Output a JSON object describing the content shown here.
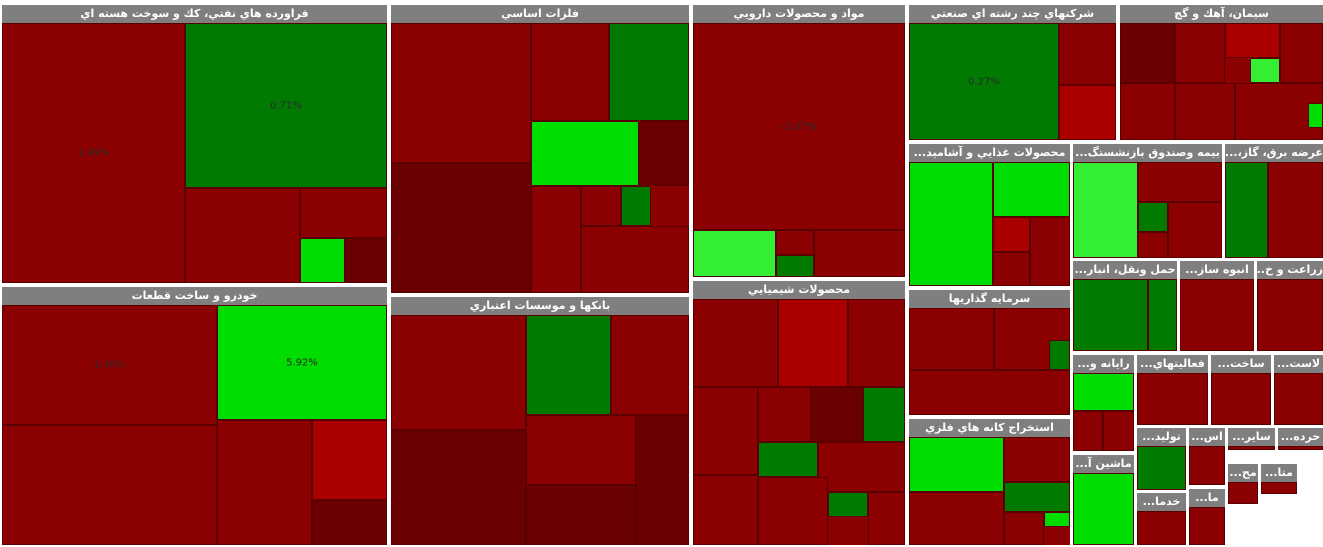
{
  "sectors": [
    {
      "title": "فراورده هاي نفتي، كك و سوخت هسته اي",
      "tiles": [
        {
          "label": "1.99%"
        },
        {
          "label": "0.71%"
        }
      ]
    },
    {
      "title": "خودرو و ساخت قطعات",
      "tiles": [
        {
          "label": "1.40%"
        },
        {
          "label": "5.92%"
        }
      ]
    },
    {
      "title": "فلزات اساسي",
      "tiles": []
    },
    {
      "title": "بانكها و موسسات اعتباري",
      "tiles": []
    },
    {
      "title": "مواد و محصولات دارويي",
      "tiles": [
        {
          "label": "-1.07%"
        }
      ]
    },
    {
      "title": "محصولات شيميايي",
      "tiles": []
    },
    {
      "title": "شركتهاي چند رشته اي صنعتي",
      "tiles": [
        {
          "label": "0.27%"
        }
      ]
    },
    {
      "title": "سيمان، آهك و گچ",
      "tiles": []
    },
    {
      "title": "محصولات غذايي و آشاميد...",
      "tiles": []
    },
    {
      "title": "بيمه وصندوق بازنشستگ...",
      "tiles": []
    },
    {
      "title": "عرضه برق، گاز،...",
      "tiles": []
    },
    {
      "title": "سرمايه گذاريها",
      "tiles": []
    },
    {
      "title": "استخراج كانه هاي فلزي",
      "tiles": []
    },
    {
      "title": "حمل ونقل، انبار...",
      "tiles": []
    },
    {
      "title": "انبوه ساز...",
      "tiles": []
    },
    {
      "title": "زراعت و خ...",
      "tiles": []
    },
    {
      "title": "رايانه و...",
      "tiles": []
    },
    {
      "title": "فعاليتهاي...",
      "tiles": []
    },
    {
      "title": "ساخت...",
      "tiles": []
    },
    {
      "title": "لاست...",
      "tiles": []
    },
    {
      "title": "تولید...",
      "tiles": []
    },
    {
      "title": "اس...",
      "tiles": []
    },
    {
      "title": "ساير...",
      "tiles": []
    },
    {
      "title": "حرده...",
      "tiles": []
    },
    {
      "title": "ماشين آ...",
      "tiles": []
    },
    {
      "title": "خدما...",
      "tiles": []
    },
    {
      "title": "ما...",
      "tiles": []
    },
    {
      "title": "مح...",
      "tiles": []
    },
    {
      "title": "متا...",
      "tiles": []
    }
  ]
}
